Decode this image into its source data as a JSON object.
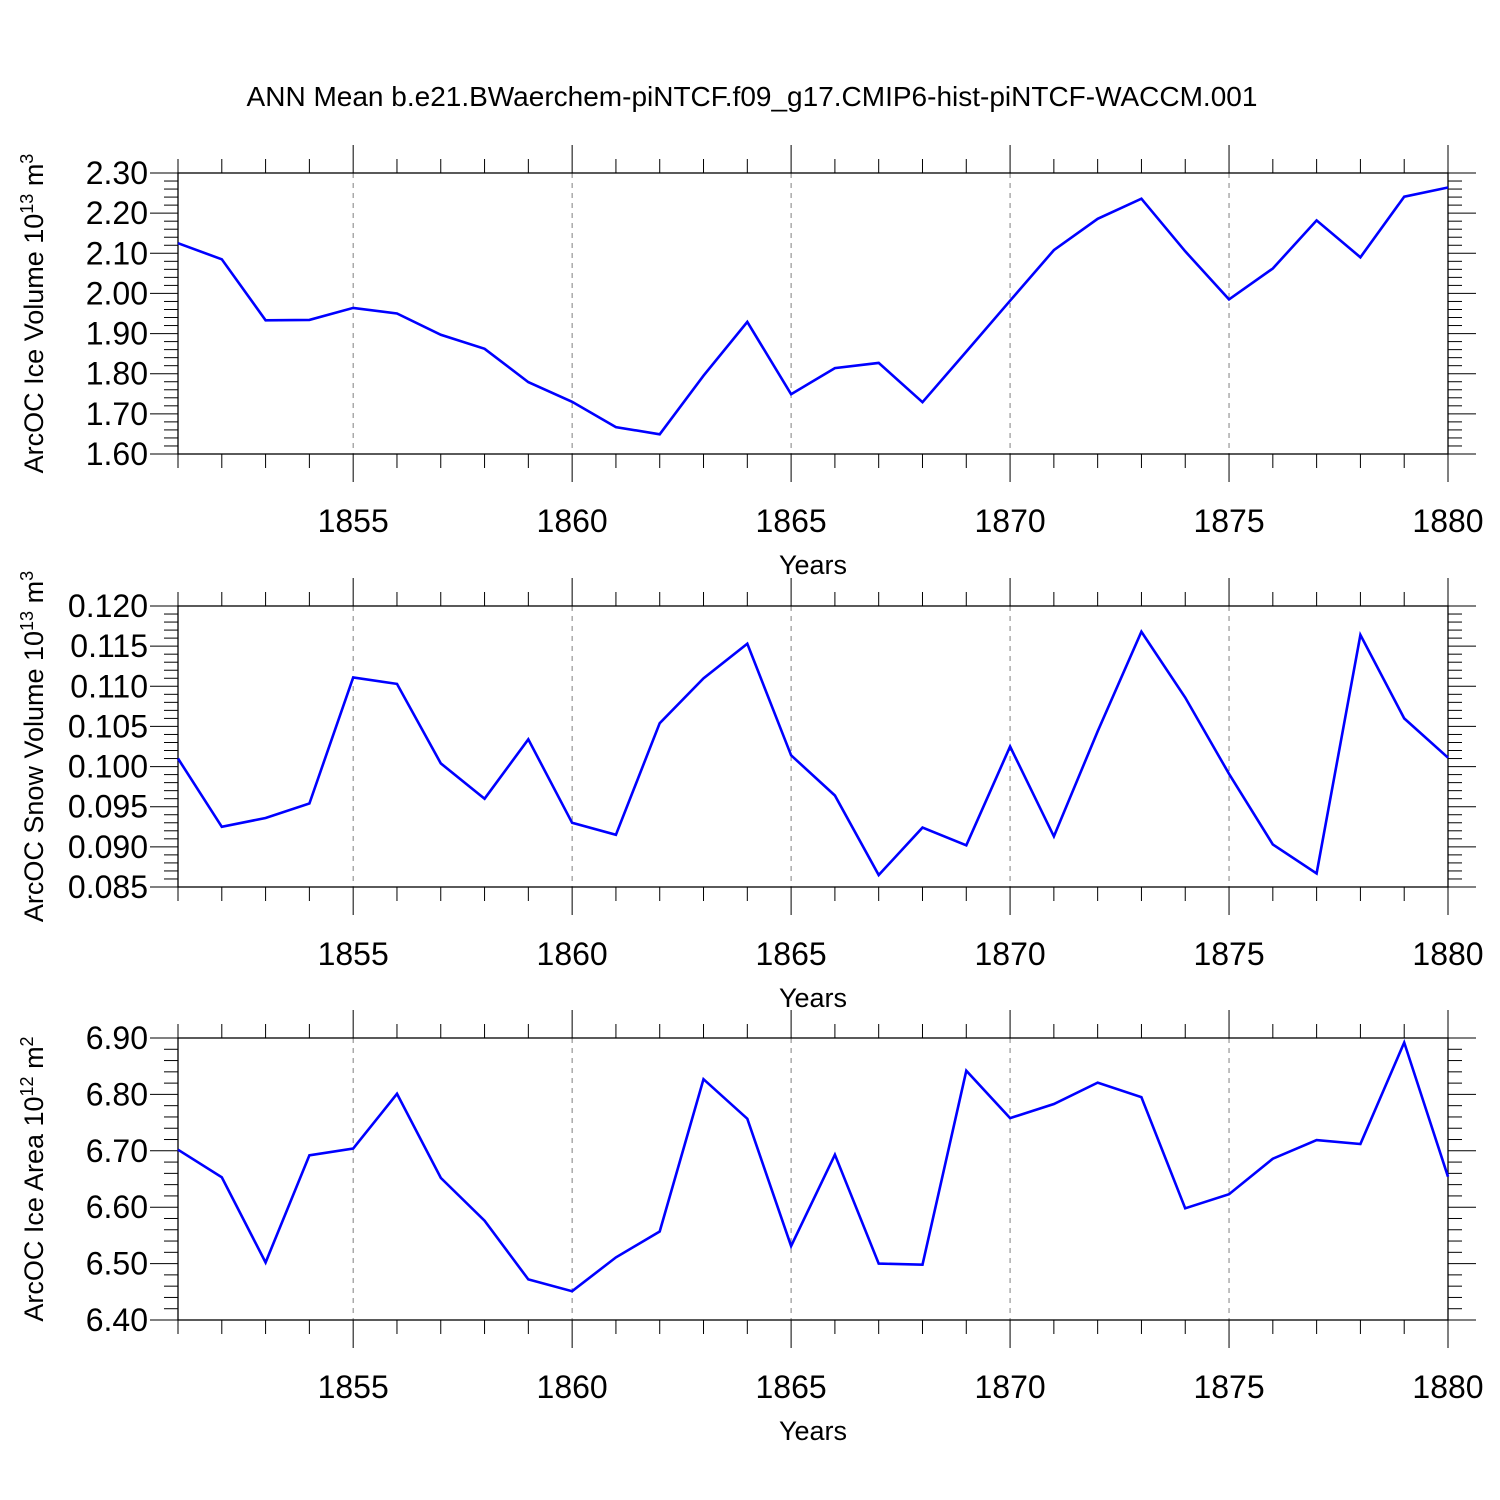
{
  "title": "ANN Mean b.e21.BWaerchem-piNTCF.f09_g17.CMIP6-hist-piNTCF-WACCM.001",
  "colors": {
    "line": "#0000ff",
    "axis": "#000000",
    "grid": "#808080"
  },
  "chart_data": [
    {
      "type": "line",
      "id": "ice-volume",
      "ylabel_main": "ArcOC Ice Volume 10",
      "ylabel_exp": "13",
      "ylabel_unit": " m",
      "ylabel_unit_exp": "3",
      "xlabel": "Years",
      "xlim": [
        1851,
        1880
      ],
      "ylim": [
        1.6,
        2.3
      ],
      "yticks": [
        "1.60",
        "1.70",
        "1.80",
        "1.90",
        "2.00",
        "2.10",
        "2.20",
        "2.30"
      ],
      "yticks_values": [
        1.6,
        1.7,
        1.8,
        1.9,
        2.0,
        2.1,
        2.2,
        2.3
      ],
      "xticks": [
        "1855",
        "1860",
        "1865",
        "1870",
        "1875",
        "1880"
      ],
      "xticks_values": [
        1855,
        1860,
        1865,
        1870,
        1875,
        1880
      ],
      "grid": "vertical dashed at major x ticks",
      "x": [
        1851,
        1852,
        1853,
        1854,
        1855,
        1856,
        1857,
        1858,
        1859,
        1860,
        1861,
        1862,
        1863,
        1864,
        1865,
        1866,
        1867,
        1868,
        1869,
        1870,
        1871,
        1872,
        1873,
        1874,
        1875,
        1876,
        1877,
        1878,
        1879,
        1880
      ],
      "values": [
        2.125,
        2.085,
        1.933,
        1.934,
        1.964,
        1.95,
        1.897,
        1.862,
        1.779,
        1.73,
        1.667,
        1.649,
        1.795,
        1.929,
        1.749,
        1.814,
        1.827,
        1.729,
        1.855,
        1.982,
        2.108,
        2.186,
        2.236,
        2.105,
        1.985,
        2.062,
        2.182,
        2.09,
        2.241,
        2.264
      ]
    },
    {
      "type": "line",
      "id": "snow-volume",
      "ylabel_main": "ArcOC Snow Volume 10",
      "ylabel_exp": "13",
      "ylabel_unit": " m",
      "ylabel_unit_exp": "3",
      "xlabel": "Years",
      "xlim": [
        1851,
        1880
      ],
      "ylim": [
        0.085,
        0.12
      ],
      "yticks": [
        "0.085",
        "0.090",
        "0.095",
        "0.100",
        "0.105",
        "0.110",
        "0.115",
        "0.120"
      ],
      "yticks_values": [
        0.085,
        0.09,
        0.095,
        0.1,
        0.105,
        0.11,
        0.115,
        0.12
      ],
      "xticks": [
        "1855",
        "1860",
        "1865",
        "1870",
        "1875",
        "1880"
      ],
      "xticks_values": [
        1855,
        1860,
        1865,
        1870,
        1875,
        1880
      ],
      "grid": "vertical dashed at major x ticks",
      "x": [
        1851,
        1852,
        1853,
        1854,
        1855,
        1856,
        1857,
        1858,
        1859,
        1860,
        1861,
        1862,
        1863,
        1864,
        1865,
        1866,
        1867,
        1868,
        1869,
        1870,
        1871,
        1872,
        1873,
        1874,
        1875,
        1876,
        1877,
        1878,
        1879,
        1880
      ],
      "values": [
        0.101,
        0.0925,
        0.0936,
        0.0954,
        0.1111,
        0.1103,
        0.1004,
        0.096,
        0.1034,
        0.093,
        0.0915,
        0.1054,
        0.111,
        0.1153,
        0.1014,
        0.0964,
        0.0865,
        0.0924,
        0.0902,
        0.1025,
        0.0913,
        0.1044,
        0.1168,
        0.1086,
        0.0991,
        0.0903,
        0.0867,
        0.1164,
        0.106,
        0.1011
      ]
    },
    {
      "type": "line",
      "id": "ice-area",
      "ylabel_main": "ArcOC Ice Area 10",
      "ylabel_exp": "12",
      "ylabel_unit": " m",
      "ylabel_unit_exp": "2",
      "xlabel": "Years",
      "xlim": [
        1851,
        1880
      ],
      "ylim": [
        6.4,
        6.9
      ],
      "yticks": [
        "6.40",
        "6.50",
        "6.60",
        "6.70",
        "6.80",
        "6.90"
      ],
      "yticks_values": [
        6.4,
        6.5,
        6.6,
        6.7,
        6.8,
        6.9
      ],
      "xticks": [
        "1855",
        "1860",
        "1865",
        "1870",
        "1875",
        "1880"
      ],
      "xticks_values": [
        1855,
        1860,
        1865,
        1870,
        1875,
        1880
      ],
      "grid": "vertical dashed at major x ticks",
      "x": [
        1851,
        1852,
        1853,
        1854,
        1855,
        1856,
        1857,
        1858,
        1859,
        1860,
        1861,
        1862,
        1863,
        1864,
        1865,
        1866,
        1867,
        1868,
        1869,
        1870,
        1871,
        1872,
        1873,
        1874,
        1875,
        1876,
        1877,
        1878,
        1879,
        1880
      ],
      "values": [
        6.702,
        6.653,
        6.502,
        6.692,
        6.704,
        6.801,
        6.652,
        6.576,
        6.472,
        6.451,
        6.511,
        6.557,
        6.827,
        6.757,
        6.531,
        6.693,
        6.5,
        6.498,
        6.842,
        6.758,
        6.783,
        6.821,
        6.795,
        6.598,
        6.623,
        6.686,
        6.719,
        6.712,
        6.892,
        6.654
      ]
    }
  ]
}
